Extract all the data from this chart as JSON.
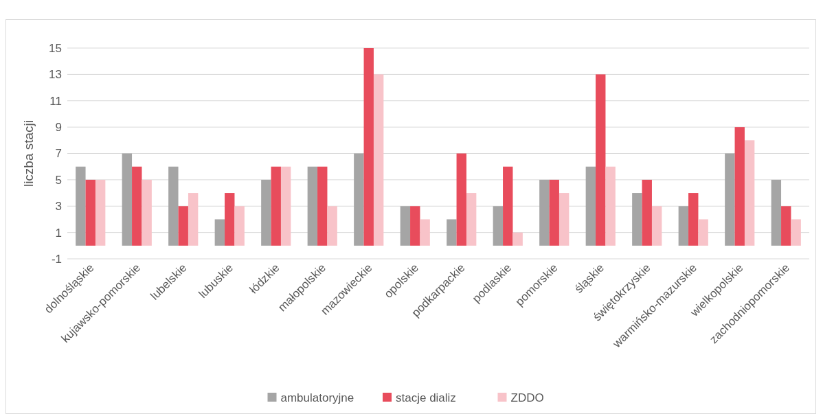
{
  "chart_data": {
    "type": "bar",
    "ylabel": "liczba stacji",
    "categories": [
      "dolnośląskie",
      "kujawsko-pomorskie",
      "lubelskie",
      "lubuskie",
      "łódzkie",
      "małopolskie",
      "mazowieckie",
      "opolskie",
      "podkarpackie",
      "podlaskie",
      "pomorskie",
      "śląskie",
      "świętokrzyskie",
      "warmińsko-mazurskie",
      "wielkopolskie",
      "zachodniopomorskie"
    ],
    "series": [
      {
        "name": "ambulatoryjne",
        "color": "#a5a5a5",
        "values": [
          6,
          7,
          6,
          2,
          5,
          6,
          7,
          3,
          2,
          3,
          5,
          6,
          4,
          3,
          7,
          5
        ]
      },
      {
        "name": "stacje dializ",
        "color": "#e84c5c",
        "values": [
          5,
          6,
          3,
          4,
          6,
          6,
          15,
          3,
          7,
          6,
          5,
          13,
          5,
          4,
          9,
          3
        ]
      },
      {
        "name": "ZDDO",
        "color": "#f8c3c9",
        "values": [
          5,
          5,
          4,
          3,
          6,
          3,
          13,
          2,
          4,
          1,
          4,
          6,
          3,
          2,
          8,
          2
        ]
      }
    ],
    "ylim": [
      -1,
      15
    ],
    "yticks": [
      -1,
      1,
      3,
      5,
      7,
      9,
      11,
      13,
      15
    ],
    "grid": "y",
    "legend": "bottom"
  }
}
